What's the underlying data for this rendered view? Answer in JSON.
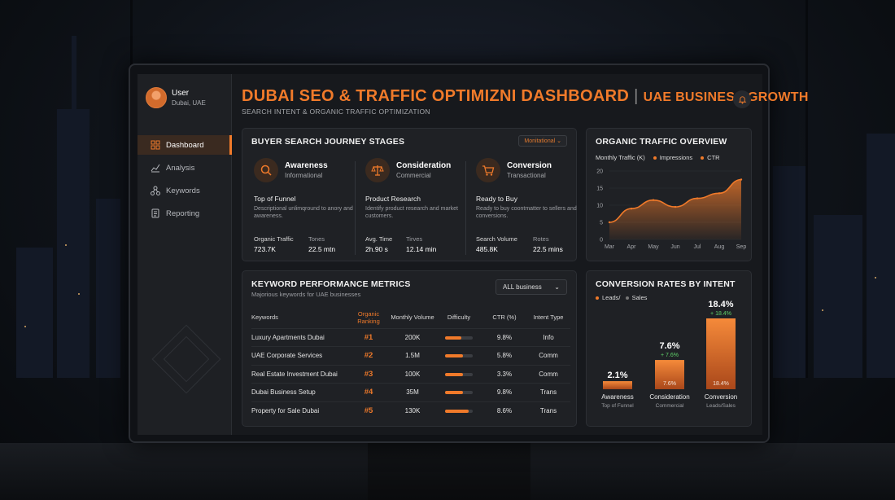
{
  "app": {
    "title_main": "DUBAI SEO & TRAFFIC OPTIMIZNI DASHBOARD",
    "title_separator": "|",
    "title_tag": "UAE BUSINESS GROWTH",
    "subtitle": "SEARCH INTENT & ORGANIC TRAFFIC OPTIMIZATION"
  },
  "user": {
    "name": "User",
    "location": "Dubai, UAE"
  },
  "sidebar": {
    "items": [
      {
        "label": "Dashboard",
        "icon": "grid-icon",
        "active": true
      },
      {
        "label": "Analysis",
        "icon": "line-chart-icon",
        "active": false
      },
      {
        "label": "Keywords",
        "icon": "network-icon",
        "active": false
      },
      {
        "label": "Reporting",
        "icon": "document-icon",
        "active": false
      }
    ]
  },
  "journey": {
    "title": "BUYER SEARCH JOURNEY STAGES",
    "dropdown": "Monitational",
    "stages": [
      {
        "name": "Awareness",
        "type": "Informational",
        "icon": "search-icon",
        "heading": "Top of Funnel",
        "desc": "Descriptional unlimqround to anory and awareness.",
        "stat1_label": "Organic Traffic",
        "stat1_value": "723.7K",
        "stat2_label": "Tones",
        "stat2_value": "22.5 mtn"
      },
      {
        "name": "Consideration",
        "type": "Commercial",
        "icon": "scale-icon",
        "heading": "Product Research",
        "desc": "Identify product research and market customers.",
        "stat1_label": "Avg. Time",
        "stat1_value": "2h.90 s",
        "stat2_label": "Tirves",
        "stat2_value": "12.14 min"
      },
      {
        "name": "Conversion",
        "type": "Transactional",
        "icon": "cart-icon",
        "heading": "Ready to Buy",
        "desc": "Ready to buy coontmatter to sellers and conversions.",
        "stat1_label": "Search Volume",
        "stat1_value": "485.8K",
        "stat2_label": "Rotes",
        "stat2_value": "22.5 mins"
      }
    ]
  },
  "traffic": {
    "title": "ORGANIC TRAFFIC OVERVIEW",
    "legend_label": "Monthly Traffic (K)",
    "legend_impressions": "Impressions",
    "legend_ctr": "CTR",
    "accent": "#f07a2a"
  },
  "keywords": {
    "title": "KEYWORD PERFORMANCE METRICS",
    "subtitle": "Majorious keywords for UAE businesses",
    "filter": "ALL business",
    "columns": [
      "Keywords",
      "Organic Ranking",
      "Monthly Volume",
      "Difficulty",
      "CTR (%)",
      "Intent Type"
    ],
    "rows": [
      {
        "keyword": "Luxury Apartments Dubai",
        "rank": "#1",
        "volume": "200K",
        "difficulty": 0.6,
        "ctr": "9.8%",
        "intent": "Info"
      },
      {
        "keyword": "UAE Corporate Services",
        "rank": "#2",
        "volume": "1.5M",
        "difficulty": 0.65,
        "ctr": "5.8%",
        "intent": "Comm"
      },
      {
        "keyword": "Real Estate Investment Dubai",
        "rank": "#3",
        "volume": "100K",
        "difficulty": 0.65,
        "ctr": "3.3%",
        "intent": "Comm"
      },
      {
        "keyword": "Dubai Business Setup",
        "rank": "#4",
        "volume": "35M",
        "difficulty": 0.65,
        "ctr": "9.8%",
        "intent": "Trans"
      },
      {
        "keyword": "Property for Sale Dubai",
        "rank": "#5",
        "volume": "130K",
        "difficulty": 0.85,
        "ctr": "8.6%",
        "intent": "Trans"
      }
    ]
  },
  "conversion": {
    "title": "CONVERSION RATES BY INTENT",
    "legend_a": "Leads/",
    "legend_b": "Sales"
  },
  "chart_data": [
    {
      "type": "area",
      "title": "ORGANIC TRAFFIC OVERVIEW",
      "categories": [
        "Mar",
        "Apr",
        "May",
        "Jun",
        "Jul",
        "Aug",
        "Sep"
      ],
      "series": [
        {
          "name": "Monthly Traffic (K)",
          "values": [
            5,
            9,
            11.5,
            9.5,
            12,
            13.5,
            17.5
          ]
        }
      ],
      "yticks": [
        "0",
        "5",
        "10",
        "15",
        "20"
      ],
      "ylim": [
        0,
        20
      ],
      "grid": true
    },
    {
      "type": "bar",
      "title": "CONVERSION RATES BY INTENT",
      "categories": [
        "Awareness",
        "Consideration",
        "Conversion"
      ],
      "sublabels": [
        "Top of Funnel",
        "Commercial",
        "Leads/Sales"
      ],
      "values": [
        2.1,
        7.6,
        18.4
      ],
      "value_labels": [
        "2.1%",
        "7.6%",
        "18.4%"
      ],
      "change_labels": [
        "",
        "+ 7.6%",
        "+ 18.4%"
      ],
      "inner_labels": [
        "",
        "7.6%",
        "18.4%"
      ]
    }
  ]
}
